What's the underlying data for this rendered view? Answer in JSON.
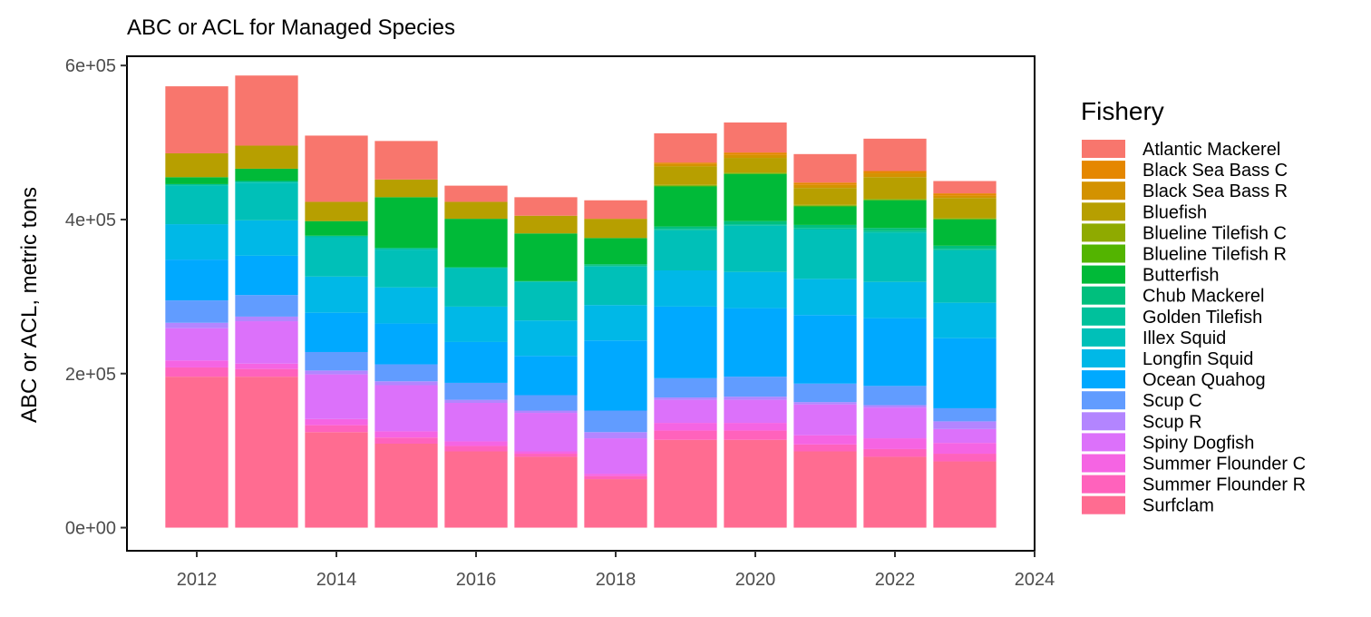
{
  "chart_data": {
    "type": "bar",
    "stacked": true,
    "title": "ABC or ACL for Managed Species",
    "xlabel": "",
    "ylabel": "ABC or ACL, metric tons",
    "x": [
      2012,
      2013,
      2014,
      2015,
      2016,
      2017,
      2018,
      2019,
      2020,
      2021,
      2022,
      2023
    ],
    "xlim": [
      2011,
      2024
    ],
    "x_ticks": [
      2012,
      2014,
      2016,
      2018,
      2020,
      2022,
      2024
    ],
    "ylim": [
      -30000,
      612000
    ],
    "y_ticks": [
      {
        "value": 0,
        "label": "0e+00"
      },
      {
        "value": 200000,
        "label": "2e+05"
      },
      {
        "value": 400000,
        "label": "4e+05"
      },
      {
        "value": 600000,
        "label": "6e+05"
      }
    ],
    "grid": false,
    "legend": {
      "title": "Fishery",
      "position": "right"
    },
    "series": [
      {
        "name": "Surfclam",
        "color": "#FF6C91",
        "values": [
          196000,
          196000,
          124000,
          109000,
          99000,
          92000,
          63000,
          114000,
          114000,
          99000,
          92000,
          86000
        ]
      },
      {
        "name": "Summer Flounder R",
        "color": "#FF62BC",
        "values": [
          12000,
          10000,
          9000,
          8000,
          7000,
          4000,
          4000,
          12000,
          12000,
          9000,
          10000,
          10000
        ]
      },
      {
        "name": "Summer Flounder C",
        "color": "#F564E3",
        "values": [
          9000,
          7000,
          8000,
          8000,
          6000,
          3000,
          3000,
          10000,
          10000,
          12000,
          14000,
          14000
        ]
      },
      {
        "name": "Spiny Dogfish",
        "color": "#DC71FA",
        "values": [
          42000,
          55000,
          58000,
          60000,
          50000,
          50000,
          46000,
          30000,
          30000,
          40000,
          40000,
          18000
        ]
      },
      {
        "name": "Scup R",
        "color": "#B385FF",
        "values": [
          7000,
          6000,
          5000,
          5000,
          4000,
          3000,
          8000,
          3000,
          4000,
          3000,
          3000,
          10000
        ]
      },
      {
        "name": "Scup C",
        "color": "#619CFF",
        "values": [
          29000,
          28000,
          24000,
          22000,
          22000,
          20000,
          28000,
          25000,
          26000,
          24000,
          25000,
          17000
        ]
      },
      {
        "name": "Ocean Quahog",
        "color": "#00A9FF",
        "values": [
          53000,
          51000,
          51000,
          53000,
          53000,
          51000,
          91000,
          93000,
          89000,
          89000,
          88000,
          91000
        ]
      },
      {
        "name": "Longfin Squid",
        "color": "#00B8E7",
        "values": [
          46000,
          46000,
          47000,
          47000,
          46000,
          46000,
          46000,
          47000,
          47000,
          47000,
          47000,
          46000
        ]
      },
      {
        "name": "Illex Squid",
        "color": "#00C0B8",
        "values": [
          50000,
          49000,
          51000,
          49000,
          50000,
          50000,
          50000,
          52000,
          60000,
          64000,
          64000,
          68000
        ]
      },
      {
        "name": "Golden Tilefish",
        "color": "#00C19C",
        "values": [
          2000,
          2000,
          2000,
          2000,
          1000,
          1000,
          1000,
          2000,
          2000,
          2000,
          2000,
          2000
        ]
      },
      {
        "name": "Chub Mackerel",
        "color": "#00BF7D",
        "values": [
          0,
          0,
          0,
          0,
          0,
          0,
          2000,
          3000,
          4000,
          4000,
          4000,
          4000
        ]
      },
      {
        "name": "Butterfish",
        "color": "#00BA38",
        "values": [
          9000,
          16000,
          19000,
          66000,
          63000,
          62000,
          34000,
          52000,
          61000,
          24000,
          36000,
          34000
        ]
      },
      {
        "name": "Blueline Tilefish R",
        "color": "#53B400",
        "values": [
          0,
          0,
          0,
          0,
          0,
          0,
          0,
          1000,
          1000,
          1000,
          1000,
          1000
        ]
      },
      {
        "name": "Blueline Tilefish C",
        "color": "#8FAA00",
        "values": [
          0,
          0,
          0,
          0,
          0,
          0,
          0,
          1000,
          1000,
          1000,
          1000,
          1000
        ]
      },
      {
        "name": "Bluefish",
        "color": "#B79F00",
        "values": [
          31000,
          30000,
          25000,
          23000,
          22000,
          23000,
          25000,
          24000,
          19000,
          22000,
          28000,
          26000
        ]
      },
      {
        "name": "Black Sea Bass R",
        "color": "#D39200",
        "values": [
          0,
          0,
          0,
          0,
          0,
          0,
          0,
          3000,
          4000,
          4000,
          5000,
          3000
        ]
      },
      {
        "name": "Black Sea Bass C",
        "color": "#E58700",
        "values": [
          0,
          0,
          0,
          0,
          0,
          0,
          0,
          2000,
          3000,
          3000,
          3000,
          3000
        ]
      },
      {
        "name": "Atlantic Mackerel",
        "color": "#F8766D",
        "values": [
          87000,
          91000,
          86000,
          50000,
          21000,
          24000,
          24000,
          38000,
          39000,
          37000,
          42000,
          16000
        ]
      }
    ]
  }
}
